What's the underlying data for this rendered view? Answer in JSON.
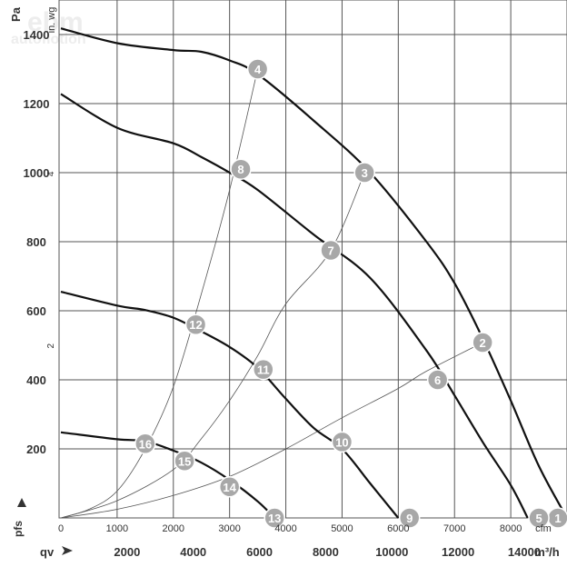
{
  "chart_data": {
    "type": "line",
    "y_unit_left": "Pa",
    "y_unit_inner": "in. wg",
    "y_ticks_pa": [
      200,
      400,
      600,
      800,
      1000,
      1200,
      1400
    ],
    "y_ticks_inwg": [
      "2",
      "4"
    ],
    "x_ticks_cfm": [
      0,
      1000,
      2000,
      3000,
      4000,
      5000,
      6000,
      7000,
      8000
    ],
    "x_unit_cfm": "cfm",
    "x_ticks_m3h": [
      2000,
      4000,
      6000,
      8000,
      10000,
      12000,
      14000
    ],
    "x_unit_m3h": "m³/h",
    "y_axis_symbol": "pfs",
    "x_axis_symbol": "qv",
    "xlim_cfm": [
      0,
      9000
    ],
    "ylim_pa": [
      0,
      1500
    ],
    "grid": true,
    "watermark": [
      "ebm",
      "autoflotion"
    ],
    "fan_curves": [
      {
        "x": [
          0,
          1000,
          2000,
          2500,
          3000,
          3500,
          4500,
          5500,
          6500,
          7000,
          7500,
          8000,
          8500,
          9000
        ],
        "y": [
          1418,
          1375,
          1355,
          1350,
          1325,
          1285,
          1150,
          1000,
          800,
          680,
          520,
          340,
          150,
          0
        ]
      },
      {
        "x": [
          0,
          1000,
          2000,
          2500,
          3000,
          3500,
          4500,
          5500,
          6500,
          7000,
          7500,
          8000,
          8300
        ],
        "y": [
          1228,
          1130,
          1085,
          1045,
          1000,
          950,
          820,
          695,
          485,
          355,
          220,
          95,
          0
        ]
      },
      {
        "x": [
          0,
          1000,
          1500,
          2000,
          2500,
          3000,
          3500,
          4000,
          4500,
          5000,
          5500,
          6000
        ],
        "y": [
          655,
          615,
          602,
          580,
          540,
          495,
          435,
          345,
          260,
          200,
          100,
          0
        ]
      },
      {
        "x": [
          0,
          1000,
          1500,
          2000,
          2500,
          3000,
          3500,
          3800
        ],
        "y": [
          248,
          228,
          222,
          195,
          160,
          110,
          48,
          0
        ]
      }
    ],
    "system_curves": [
      {
        "x": [
          0,
          500,
          1000,
          1500,
          2000,
          2500,
          3000,
          3500
        ],
        "y": [
          0,
          25,
          78,
          200,
          380,
          650,
          950,
          1300
        ]
      },
      {
        "x": [
          0,
          1000,
          2000,
          2500,
          3000,
          3500,
          4000,
          4800,
          5400
        ],
        "y": [
          0,
          50,
          140,
          230,
          340,
          470,
          620,
          775,
          1000
        ]
      },
      {
        "x": [
          0,
          1000,
          2000,
          3000,
          4000,
          5000,
          6000,
          6500,
          7500
        ],
        "y": [
          0,
          25,
          65,
          120,
          200,
          290,
          375,
          425,
          508
        ]
      }
    ],
    "markers": [
      {
        "label": "1",
        "x": 9000,
        "y": 0
      },
      {
        "label": "2",
        "x": 7500,
        "y": 508
      },
      {
        "label": "3",
        "x": 5400,
        "y": 1000
      },
      {
        "label": "4",
        "x": 3500,
        "y": 1300
      },
      {
        "label": "5",
        "x": 8500,
        "y": 0
      },
      {
        "label": "6",
        "x": 6700,
        "y": 400
      },
      {
        "label": "7",
        "x": 4800,
        "y": 775
      },
      {
        "label": "8",
        "x": 3200,
        "y": 1010
      },
      {
        "label": "9",
        "x": 6200,
        "y": 0
      },
      {
        "label": "10",
        "x": 5000,
        "y": 220
      },
      {
        "label": "11",
        "x": 3600,
        "y": 430
      },
      {
        "label": "12",
        "x": 2400,
        "y": 560
      },
      {
        "label": "13",
        "x": 3800,
        "y": 0
      },
      {
        "label": "14",
        "x": 3000,
        "y": 90
      },
      {
        "label": "15",
        "x": 2200,
        "y": 165
      },
      {
        "label": "16",
        "x": 1500,
        "y": 215
      }
    ]
  }
}
